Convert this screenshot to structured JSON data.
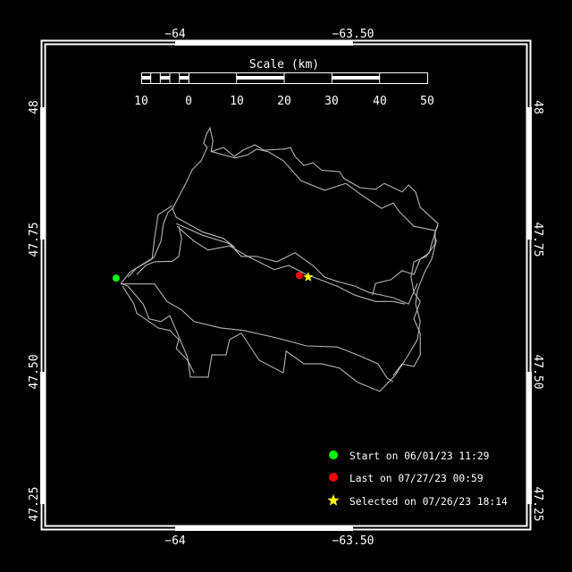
{
  "map": {
    "lon_ticks": [
      -64,
      -63.5
    ],
    "lon_tick_labels": [
      "−64",
      "−63.50"
    ],
    "lat_ticks": [
      48,
      47.75,
      47.5,
      47.25
    ],
    "lat_tick_labels": [
      "48",
      "47.75",
      "47.50",
      "47.25"
    ],
    "track_color": "#b4b4b4",
    "scale_bar": {
      "title": "Scale (km)",
      "ticks": [
        -10,
        0,
        10,
        20,
        30,
        40,
        50
      ],
      "tick_labels": [
        "10",
        "0",
        "10",
        "20",
        "30",
        "40",
        "50"
      ]
    },
    "markers": {
      "start": {
        "lon": -64.166,
        "lat": 47.677,
        "color": "#00ff00",
        "icon": "circle"
      },
      "last": {
        "lon": -63.651,
        "lat": 47.682,
        "color": "#ff0000",
        "icon": "circle"
      },
      "selected": {
        "lon": -63.626,
        "lat": 47.679,
        "color": "#ffff00",
        "icon": "star"
      }
    },
    "legend": [
      {
        "label": "Start on 06/01/23 11:29",
        "color": "#00ff00",
        "icon": "circle"
      },
      {
        "label": "Last on 07/27/23 00:59",
        "color": "#ff0000",
        "icon": "circle"
      },
      {
        "label": "Selected on 07/26/23 18:14",
        "color": "#ffff00",
        "icon": "star"
      }
    ],
    "track": [
      [
        [
          -64.153,
          47.666
        ],
        [
          -64.128,
          47.688
        ],
        [
          -64.09,
          47.704
        ],
        [
          -64.06,
          47.716
        ],
        [
          -64.04,
          47.747
        ],
        [
          -64.033,
          47.78
        ],
        [
          -64.02,
          47.801
        ],
        [
          -64.005,
          47.811
        ],
        [
          -63.99,
          47.831
        ],
        [
          -63.97,
          47.856
        ],
        [
          -63.952,
          47.882
        ],
        [
          -63.927,
          47.899
        ],
        [
          -63.91,
          47.924
        ],
        [
          -63.92,
          47.932
        ],
        [
          -63.912,
          47.949
        ],
        [
          -63.902,
          47.961
        ],
        [
          -63.894,
          47.936
        ],
        [
          -63.899,
          47.916
        ],
        [
          -63.864,
          47.924
        ],
        [
          -63.834,
          47.907
        ],
        [
          -63.809,
          47.919
        ],
        [
          -63.776,
          47.929
        ],
        [
          -63.751,
          47.919
        ],
        [
          -63.693,
          47.921
        ],
        [
          -63.676,
          47.924
        ],
        [
          -63.663,
          47.907
        ],
        [
          -63.638,
          47.89
        ],
        [
          -63.613,
          47.895
        ],
        [
          -63.588,
          47.881
        ],
        [
          -63.538,
          47.878
        ],
        [
          -63.525,
          47.865
        ],
        [
          -63.48,
          47.848
        ],
        [
          -63.437,
          47.845
        ],
        [
          -63.412,
          47.856
        ],
        [
          -63.362,
          47.84
        ],
        [
          -63.344,
          47.853
        ],
        [
          -63.324,
          47.84
        ],
        [
          -63.311,
          47.811
        ],
        [
          -63.261,
          47.78
        ],
        [
          -63.271,
          47.76
        ],
        [
          -63.266,
          47.747
        ],
        [
          -63.279,
          47.713
        ],
        [
          -63.299,
          47.688
        ],
        [
          -63.319,
          47.654
        ],
        [
          -63.324,
          47.628
        ],
        [
          -63.311,
          47.595
        ],
        [
          -63.319,
          47.561
        ],
        [
          -63.349,
          47.527
        ],
        [
          -63.382,
          47.493
        ],
        [
          -63.425,
          47.463
        ],
        [
          -63.487,
          47.48
        ],
        [
          -63.538,
          47.507
        ],
        [
          -63.588,
          47.515
        ],
        [
          -63.638,
          47.515
        ],
        [
          -63.688,
          47.539
        ],
        [
          -63.696,
          47.498
        ],
        [
          -63.764,
          47.522
        ],
        [
          -63.814,
          47.573
        ],
        [
          -63.847,
          47.561
        ],
        [
          -63.857,
          47.532
        ],
        [
          -63.897,
          47.532
        ],
        [
          -63.907,
          47.49
        ],
        [
          -63.957,
          47.49
        ],
        [
          -63.965,
          47.527
        ],
        [
          -63.997,
          47.578
        ],
        [
          -64.015,
          47.606
        ],
        [
          -64.04,
          47.595
        ],
        [
          -64.073,
          47.6
        ],
        [
          -64.09,
          47.628
        ],
        [
          -64.133,
          47.662
        ],
        [
          -64.153,
          47.667
        ]
      ],
      [
        [
          -63.997,
          47.78
        ],
        [
          -63.922,
          47.758
        ],
        [
          -63.847,
          47.742
        ],
        [
          -63.814,
          47.718
        ],
        [
          -63.771,
          47.718
        ],
        [
          -63.714,
          47.708
        ],
        [
          -63.663,
          47.725
        ],
        [
          -63.613,
          47.701
        ],
        [
          -63.58,
          47.679
        ],
        [
          -63.545,
          47.671
        ],
        [
          -63.495,
          47.662
        ],
        [
          -63.455,
          47.65
        ],
        [
          -63.387,
          47.64
        ],
        [
          -63.344,
          47.628
        ],
        [
          -63.319,
          47.667
        ]
      ],
      [
        [
          -63.995,
          47.775
        ],
        [
          -63.947,
          47.747
        ],
        [
          -63.907,
          47.73
        ],
        [
          -63.847,
          47.738
        ],
        [
          -63.796,
          47.718
        ],
        [
          -63.721,
          47.693
        ],
        [
          -63.681,
          47.701
        ],
        [
          -63.631,
          47.684
        ],
        [
          -63.545,
          47.662
        ],
        [
          -63.495,
          47.645
        ],
        [
          -63.437,
          47.633
        ],
        [
          -63.387,
          47.633
        ],
        [
          -63.354,
          47.628
        ]
      ],
      [
        [
          -64.153,
          47.666
        ],
        [
          -64.058,
          47.666
        ],
        [
          -64.023,
          47.633
        ],
        [
          -63.982,
          47.617
        ],
        [
          -63.947,
          47.595
        ],
        [
          -63.872,
          47.583
        ],
        [
          -63.806,
          47.578
        ],
        [
          -63.714,
          47.564
        ],
        [
          -63.631,
          47.549
        ],
        [
          -63.545,
          47.547
        ],
        [
          -63.487,
          47.532
        ],
        [
          -63.43,
          47.515
        ],
        [
          -63.404,
          47.488
        ],
        [
          -63.387,
          47.481
        ]
      ],
      [
        [
          -63.445,
          47.645
        ],
        [
          -63.437,
          47.667
        ],
        [
          -63.394,
          47.674
        ],
        [
          -63.362,
          47.691
        ],
        [
          -63.329,
          47.684
        ],
        [
          -63.311,
          47.713
        ],
        [
          -63.286,
          47.725
        ],
        [
          -63.269,
          47.764
        ],
        [
          -63.261,
          47.777
        ]
      ],
      [
        [
          -64.008,
          47.814
        ],
        [
          -64.048,
          47.797
        ],
        [
          -64.058,
          47.752
        ],
        [
          -64.065,
          47.713
        ],
        [
          -64.108,
          47.696
        ],
        [
          -64.133,
          47.679
        ]
      ],
      [
        [
          -63.99,
          47.775
        ],
        [
          -63.982,
          47.752
        ],
        [
          -63.99,
          47.718
        ],
        [
          -64.008,
          47.709
        ],
        [
          -64.058,
          47.708
        ],
        [
          -64.083,
          47.701
        ],
        [
          -64.108,
          47.684
        ]
      ],
      [
        [
          -63.897,
          47.916
        ],
        [
          -63.832,
          47.904
        ],
        [
          -63.796,
          47.91
        ],
        [
          -63.771,
          47.921
        ],
        [
          -63.739,
          47.916
        ],
        [
          -63.696,
          47.899
        ],
        [
          -63.646,
          47.861
        ],
        [
          -63.58,
          47.843
        ],
        [
          -63.52,
          47.856
        ],
        [
          -63.48,
          47.836
        ],
        [
          -63.42,
          47.809
        ],
        [
          -63.387,
          47.819
        ],
        [
          -63.369,
          47.802
        ],
        [
          -63.329,
          47.775
        ],
        [
          -63.269,
          47.767
        ]
      ],
      [
        [
          -63.269,
          47.767
        ],
        [
          -63.269,
          47.742
        ],
        [
          -63.294,
          47.718
        ],
        [
          -63.329,
          47.708
        ],
        [
          -63.337,
          47.679
        ],
        [
          -63.329,
          47.65
        ],
        [
          -63.311,
          47.633
        ],
        [
          -63.329,
          47.6
        ],
        [
          -63.311,
          47.573
        ],
        [
          -63.311,
          47.532
        ],
        [
          -63.329,
          47.51
        ],
        [
          -63.362,
          47.515
        ],
        [
          -63.387,
          47.493
        ]
      ],
      [
        [
          -64.148,
          47.662
        ],
        [
          -64.116,
          47.628
        ],
        [
          -64.108,
          47.611
        ],
        [
          -64.048,
          47.583
        ],
        [
          -64.015,
          47.578
        ],
        [
          -63.99,
          47.561
        ],
        [
          -63.997,
          47.544
        ],
        [
          -63.965,
          47.522
        ],
        [
          -63.947,
          47.498
        ]
      ],
      [
        [
          -64.008,
          47.809
        ],
        [
          -63.997,
          47.792
        ],
        [
          -63.922,
          47.764
        ],
        [
          -63.864,
          47.752
        ],
        [
          -63.832,
          47.735
        ]
      ]
    ]
  }
}
